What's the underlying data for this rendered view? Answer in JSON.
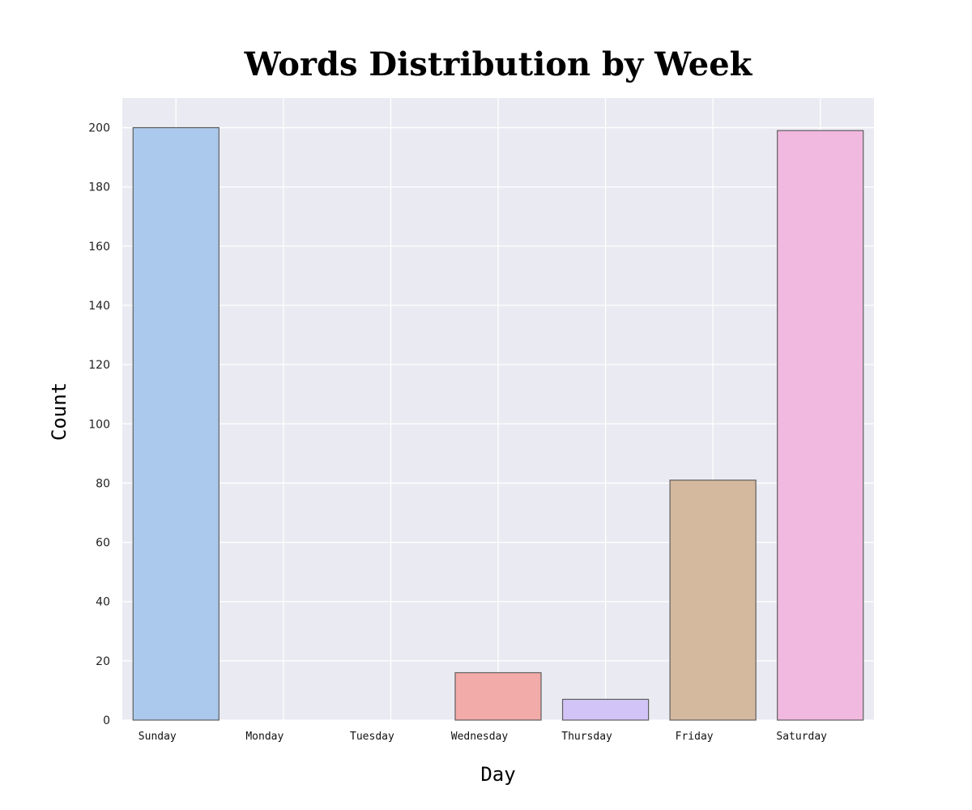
{
  "chart_data": {
    "type": "bar",
    "title": "Words Distribution by Week",
    "xlabel": "Day",
    "ylabel": "Count",
    "categories": [
      "Sunday",
      "Monday",
      "Tuesday",
      "Wednesday",
      "Thursday",
      "Friday",
      "Saturday"
    ],
    "values": [
      200,
      0,
      0,
      16,
      7,
      81,
      199
    ],
    "colors": [
      "#abc9ec",
      "#f6c59a",
      "#9fe3b4",
      "#f2aba8",
      "#d2c4f6",
      "#d4b99f",
      "#f1b8e0"
    ],
    "ylim": [
      0,
      210
    ],
    "yticks": [
      0,
      20,
      40,
      60,
      80,
      100,
      120,
      140,
      160,
      180,
      200
    ],
    "grid": true,
    "background": "#eaeaf2",
    "bar_edge_color": "#5f5f5f"
  }
}
